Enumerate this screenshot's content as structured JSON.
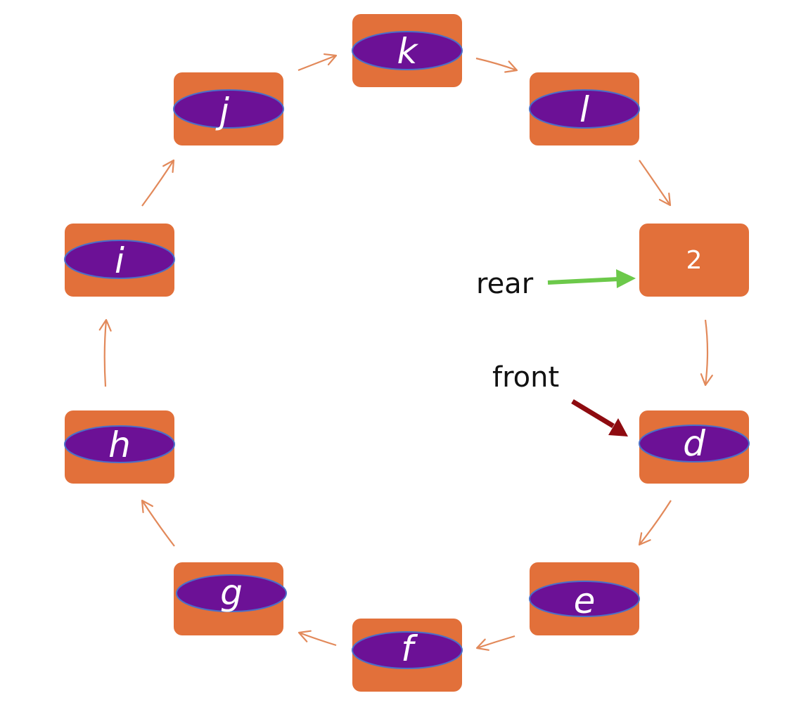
{
  "colors": {
    "box": "#E2703A",
    "oval": "#6C1196",
    "oval_stroke": "#4A6FC8",
    "link_arrow": "#E2895A",
    "rear_arrow": "#6CC94A",
    "front_arrow": "#8E0B10",
    "node_text": "#FFFFFF",
    "label_text": "#111111"
  },
  "nodes": [
    {
      "id": "k",
      "label": "k",
      "filled": true
    },
    {
      "id": "l",
      "label": "l",
      "filled": true
    },
    {
      "id": "slot-2",
      "label": "2",
      "filled": false
    },
    {
      "id": "d",
      "label": "d",
      "filled": true
    },
    {
      "id": "e",
      "label": "e",
      "filled": true
    },
    {
      "id": "f",
      "label": "f",
      "filled": true
    },
    {
      "id": "g",
      "label": "g",
      "filled": true
    },
    {
      "id": "h",
      "label": "h",
      "filled": true
    },
    {
      "id": "i",
      "label": "i",
      "filled": true
    },
    {
      "id": "j",
      "label": "j",
      "filled": true
    }
  ],
  "pointers": {
    "rear": {
      "label": "rear",
      "target": "slot-2"
    },
    "front": {
      "label": "front",
      "target": "d"
    }
  }
}
